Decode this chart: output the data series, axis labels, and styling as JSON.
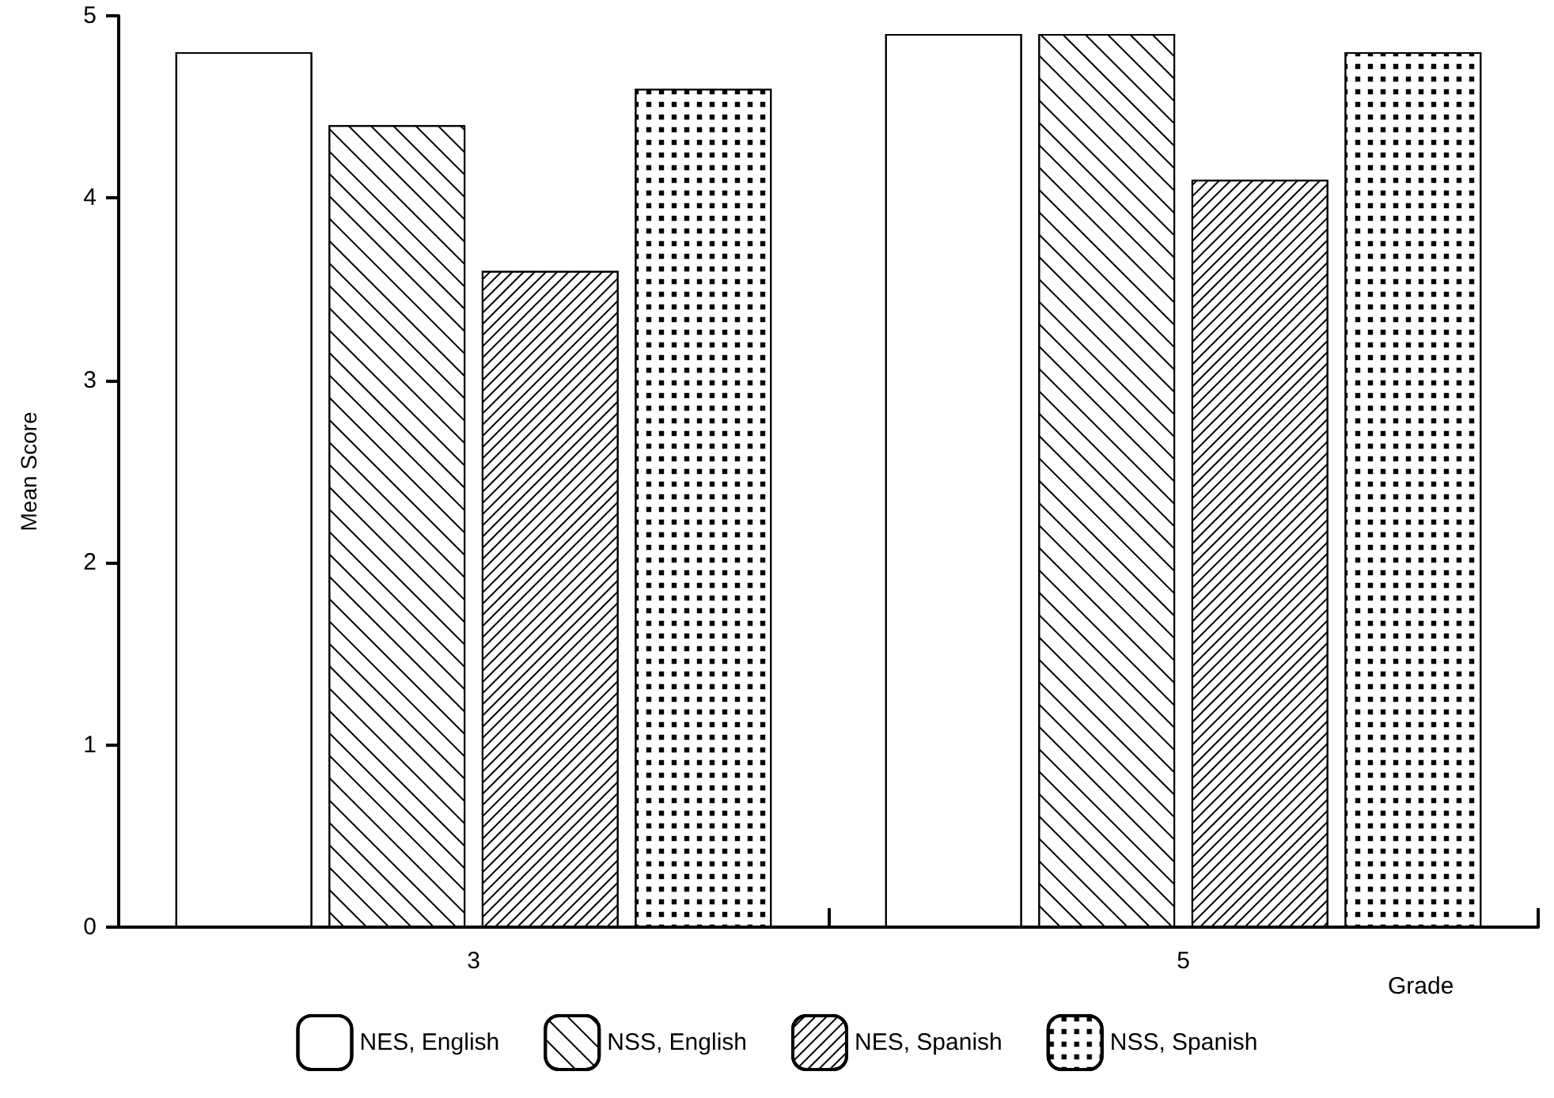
{
  "chart_data": {
    "type": "bar",
    "xlabel": "Grade",
    "ylabel": "Mean Score",
    "categories": [
      "3",
      "5"
    ],
    "series": [
      {
        "name": "NES, English",
        "color": "#ffffff",
        "values": [
          4.8,
          4.9
        ]
      },
      {
        "name": "NSS, English",
        "color": "#ffffff",
        "values": [
          4.4,
          4.9
        ]
      },
      {
        "name": "NES, Spanish",
        "color": "#ffffff",
        "values": [
          3.6,
          4.1
        ]
      },
      {
        "name": "NSS, Spanish",
        "color": "#ffffff",
        "values": [
          4.6,
          4.8
        ]
      }
    ],
    "ylim": [
      0,
      5
    ],
    "yticks": [
      0,
      1,
      2,
      3,
      4,
      5
    ],
    "grid": false,
    "legend": "bottom"
  }
}
